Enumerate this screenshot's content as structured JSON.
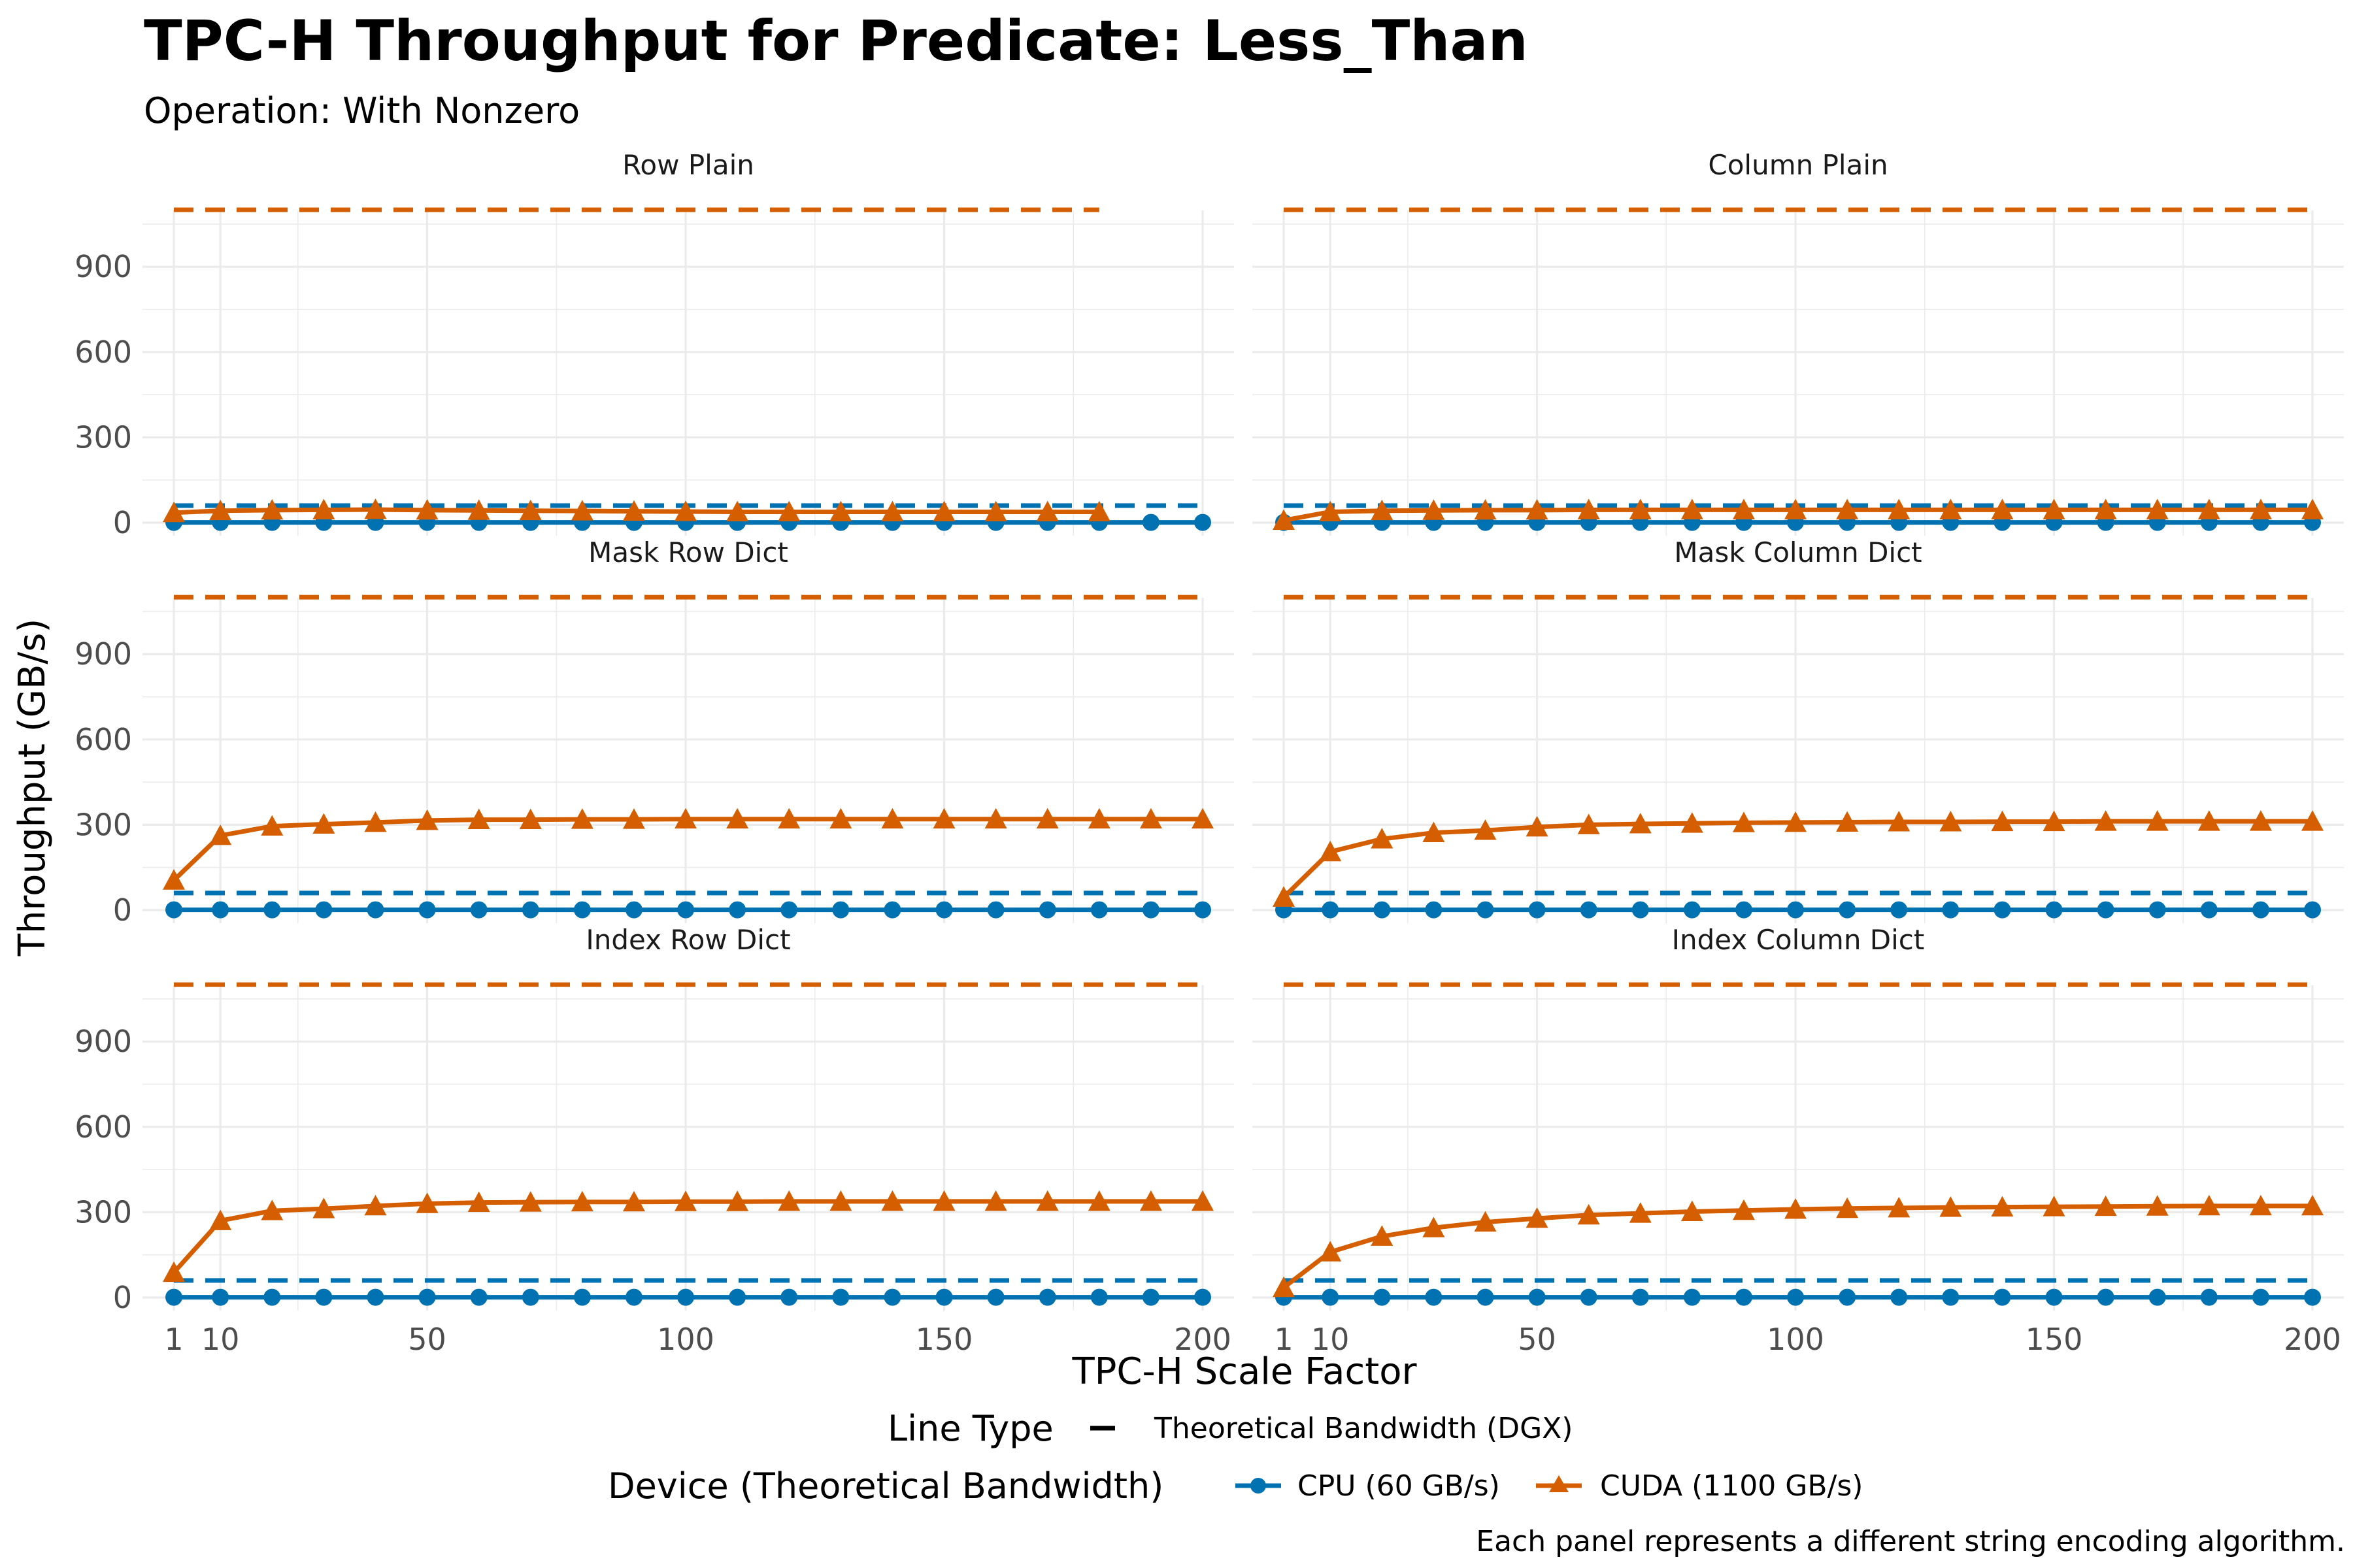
{
  "chart_data": {
    "type": "line",
    "title": "TPC-H Throughput for Predicate: Less_Than",
    "subtitle": "Operation: With Nonzero",
    "xlabel": "TPC-H Scale Factor",
    "ylabel": "Throughput (GB/s)",
    "caption": "Each panel represents a different string encoding algorithm.",
    "xlim": [
      1,
      200
    ],
    "ylim": [
      0,
      1100
    ],
    "x_ticks": [
      1,
      10,
      50,
      100,
      150,
      200
    ],
    "y_ticks": [
      0,
      300,
      600,
      900
    ],
    "grid": true,
    "legend_position": "bottom",
    "legend": {
      "linetype_title": "Line Type",
      "linetype_label": "Theoretical Bandwidth (DGX)",
      "device_title": "Device (Theoretical Bandwidth)",
      "devices": [
        {
          "name": "CPU (60 GB/s)",
          "color": "#0072B2",
          "shape": "circle"
        },
        {
          "name": "CUDA (1100 GB/s)",
          "color": "#D55E00",
          "shape": "triangle"
        }
      ]
    },
    "x": [
      1,
      10,
      20,
      30,
      40,
      50,
      60,
      70,
      80,
      90,
      100,
      110,
      120,
      130,
      140,
      150,
      160,
      170,
      180,
      190,
      200
    ],
    "panels": [
      {
        "name": "Row Plain",
        "cpu_bandwidth": {
          "value": 60,
          "x_range": [
            1,
            200
          ]
        },
        "cuda_bandwidth": {
          "value": 1100,
          "x_range": [
            1,
            180
          ]
        },
        "series": [
          {
            "name": "CPU (60 GB/s)",
            "x": [
              1,
              10,
              20,
              30,
              40,
              50,
              60,
              70,
              80,
              90,
              100,
              110,
              120,
              130,
              140,
              150,
              160,
              170,
              180,
              190,
              200
            ],
            "values": [
              1,
              1,
              1,
              1,
              1,
              1,
              1,
              1,
              1,
              1,
              1,
              1,
              1,
              1,
              1,
              1,
              1,
              1,
              1,
              1,
              1
            ]
          },
          {
            "name": "CUDA (1100 GB/s)",
            "x": [
              1,
              10,
              20,
              30,
              40,
              50,
              60,
              70,
              80,
              90,
              100,
              110,
              120,
              130,
              140,
              150,
              160,
              170,
              180
            ],
            "values": [
              35,
              42,
              44,
              45,
              46,
              44,
              43,
              42,
              41,
              40,
              39,
              38,
              38,
              38,
              38,
              38,
              38,
              38,
              38
            ]
          }
        ]
      },
      {
        "name": "Column Plain",
        "cpu_bandwidth": {
          "value": 60,
          "x_range": [
            1,
            200
          ]
        },
        "cuda_bandwidth": {
          "value": 1100,
          "x_range": [
            1,
            200
          ]
        },
        "series": [
          {
            "name": "CPU (60 GB/s)",
            "x": [
              1,
              10,
              20,
              30,
              40,
              50,
              60,
              70,
              80,
              90,
              100,
              110,
              120,
              130,
              140,
              150,
              160,
              170,
              180,
              190,
              200
            ],
            "values": [
              1,
              1,
              1,
              1,
              1,
              1,
              1,
              1,
              1,
              1,
              1,
              1,
              1,
              1,
              1,
              1,
              1,
              1,
              1,
              1,
              1
            ]
          },
          {
            "name": "CUDA (1100 GB/s)",
            "x": [
              1,
              10,
              20,
              30,
              40,
              50,
              60,
              70,
              80,
              90,
              100,
              110,
              120,
              130,
              140,
              150,
              160,
              170,
              180,
              190,
              200
            ],
            "values": [
              8,
              38,
              42,
              43,
              44,
              44,
              45,
              45,
              45,
              45,
              45,
              45,
              45,
              45,
              45,
              45,
              45,
              45,
              45,
              45,
              45
            ]
          }
        ]
      },
      {
        "name": "Mask Row Dict",
        "cpu_bandwidth": {
          "value": 60,
          "x_range": [
            1,
            200
          ]
        },
        "cuda_bandwidth": {
          "value": 1100,
          "x_range": [
            1,
            200
          ]
        },
        "series": [
          {
            "name": "CPU (60 GB/s)",
            "x": [
              1,
              10,
              20,
              30,
              40,
              50,
              60,
              70,
              80,
              90,
              100,
              110,
              120,
              130,
              140,
              150,
              160,
              170,
              180,
              190,
              200
            ],
            "values": [
              1,
              1,
              1,
              1,
              1,
              1,
              1,
              1,
              1,
              1,
              1,
              1,
              1,
              1,
              1,
              1,
              1,
              1,
              1,
              1,
              1
            ]
          },
          {
            "name": "CUDA (1100 GB/s)",
            "x": [
              1,
              10,
              20,
              30,
              40,
              50,
              60,
              70,
              80,
              90,
              100,
              110,
              120,
              130,
              140,
              150,
              160,
              170,
              180,
              190,
              200
            ],
            "values": [
              105,
              262,
              295,
              302,
              308,
              315,
              318,
              318,
              319,
              319,
              320,
              320,
              320,
              320,
              320,
              320,
              320,
              320,
              320,
              320,
              320
            ]
          }
        ]
      },
      {
        "name": "Mask Column Dict",
        "cpu_bandwidth": {
          "value": 60,
          "x_range": [
            1,
            200
          ]
        },
        "cuda_bandwidth": {
          "value": 1100,
          "x_range": [
            1,
            200
          ]
        },
        "series": [
          {
            "name": "CPU (60 GB/s)",
            "x": [
              1,
              10,
              20,
              30,
              40,
              50,
              60,
              70,
              80,
              90,
              100,
              110,
              120,
              130,
              140,
              150,
              160,
              170,
              180,
              190,
              200
            ],
            "values": [
              1,
              1,
              1,
              1,
              1,
              1,
              1,
              1,
              1,
              1,
              1,
              1,
              1,
              1,
              1,
              1,
              1,
              1,
              1,
              1,
              1
            ]
          },
          {
            "name": "CUDA (1100 GB/s)",
            "x": [
              1,
              10,
              20,
              30,
              40,
              50,
              60,
              70,
              80,
              90,
              100,
              110,
              120,
              130,
              140,
              150,
              160,
              170,
              180,
              190,
              200
            ],
            "values": [
              45,
              205,
              250,
              272,
              280,
              292,
              300,
              303,
              305,
              307,
              308,
              309,
              310,
              310,
              311,
              311,
              312,
              312,
              312,
              312,
              312
            ]
          }
        ]
      },
      {
        "name": "Index Row Dict",
        "cpu_bandwidth": {
          "value": 60,
          "x_range": [
            1,
            200
          ]
        },
        "cuda_bandwidth": {
          "value": 1100,
          "x_range": [
            1,
            200
          ]
        },
        "series": [
          {
            "name": "CPU (60 GB/s)",
            "x": [
              1,
              10,
              20,
              30,
              40,
              50,
              60,
              70,
              80,
              90,
              100,
              110,
              120,
              130,
              140,
              150,
              160,
              170,
              180,
              190,
              200
            ],
            "values": [
              1,
              1,
              1,
              1,
              1,
              1,
              1,
              1,
              1,
              1,
              1,
              1,
              1,
              1,
              1,
              1,
              1,
              1,
              1,
              1,
              1
            ]
          },
          {
            "name": "CUDA (1100 GB/s)",
            "x": [
              1,
              10,
              20,
              30,
              40,
              50,
              60,
              70,
              80,
              90,
              100,
              110,
              120,
              130,
              140,
              150,
              160,
              170,
              180,
              190,
              200
            ],
            "values": [
              88,
              270,
              305,
              312,
              322,
              330,
              334,
              335,
              336,
              336,
              337,
              337,
              338,
              338,
              338,
              338,
              338,
              338,
              338,
              338,
              338
            ]
          }
        ]
      },
      {
        "name": "Index Column Dict",
        "cpu_bandwidth": {
          "value": 60,
          "x_range": [
            1,
            200
          ]
        },
        "cuda_bandwidth": {
          "value": 1100,
          "x_range": [
            1,
            200
          ]
        },
        "series": [
          {
            "name": "CPU (60 GB/s)",
            "x": [
              1,
              10,
              20,
              30,
              40,
              50,
              60,
              70,
              80,
              90,
              100,
              110,
              120,
              130,
              140,
              150,
              160,
              170,
              180,
              190,
              200
            ],
            "values": [
              1,
              1,
              1,
              1,
              1,
              1,
              1,
              1,
              1,
              1,
              1,
              1,
              1,
              1,
              1,
              1,
              1,
              1,
              1,
              1,
              1
            ]
          },
          {
            "name": "CUDA (1100 GB/s)",
            "x": [
              1,
              10,
              20,
              30,
              40,
              50,
              60,
              70,
              80,
              90,
              100,
              110,
              120,
              130,
              140,
              150,
              160,
              170,
              180,
              190,
              200
            ],
            "values": [
              35,
              160,
              215,
              245,
              265,
              278,
              290,
              296,
              302,
              306,
              310,
              313,
              315,
              317,
              318,
              319,
              320,
              321,
              322,
              322,
              322
            ]
          }
        ]
      }
    ]
  }
}
